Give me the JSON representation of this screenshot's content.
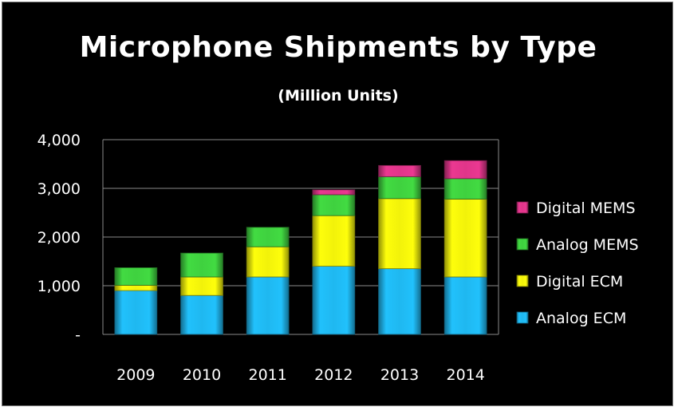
{
  "chart_data": {
    "type": "bar",
    "stacked": true,
    "title": "Microphone Shipments by Type",
    "subtitle": "(Million Units)",
    "categories": [
      "2009",
      "2010",
      "2011",
      "2012",
      "2013",
      "2014"
    ],
    "series": [
      {
        "name": "Analog ECM",
        "color": "#1fb8f0",
        "values": [
          900,
          800,
          1180,
          1400,
          1350,
          1180
        ]
      },
      {
        "name": "Digital ECM",
        "color": "#f2f20a",
        "values": [
          110,
          380,
          620,
          1040,
          1440,
          1600
        ]
      },
      {
        "name": "Analog MEMS",
        "color": "#3fd13f",
        "values": [
          360,
          490,
          400,
          430,
          450,
          420
        ]
      },
      {
        "name": "Digital MEMS",
        "color": "#e0358a",
        "values": [
          0,
          0,
          0,
          100,
          230,
          370
        ]
      }
    ],
    "yticks": [
      "-",
      "1,000",
      "2,000",
      "3,000",
      "4,000"
    ],
    "ylim": [
      0,
      4000
    ],
    "grid": true,
    "legend": "right"
  }
}
